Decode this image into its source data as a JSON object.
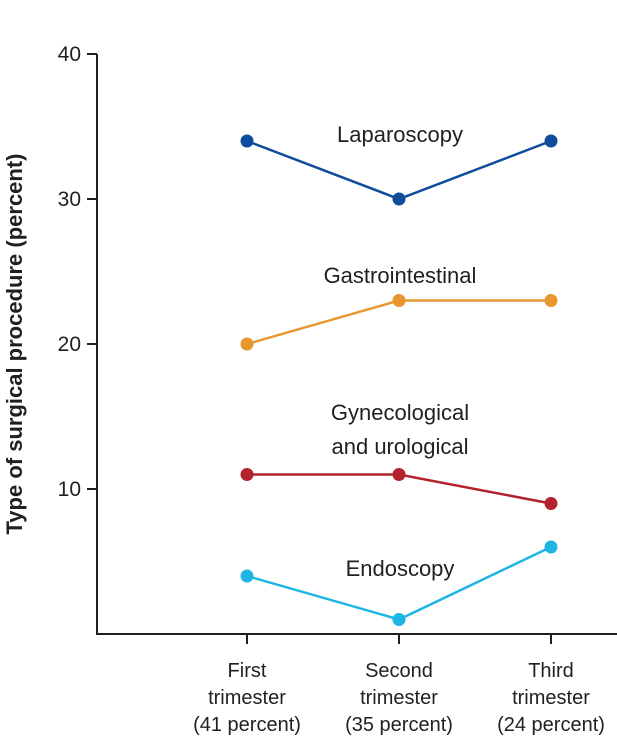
{
  "chart_data": {
    "type": "line",
    "ylabel": "Type of surgical procedure (percent)",
    "ylim": [
      0,
      40
    ],
    "yticks": [
      10,
      20,
      30,
      40
    ],
    "categories": [
      [
        "First",
        "trimester",
        "(41 percent)"
      ],
      [
        "Second",
        "trimester",
        "(35 percent)"
      ],
      [
        "Third",
        "trimester",
        "(24 percent)"
      ]
    ],
    "series": [
      {
        "name": "Laparoscopy",
        "label_lines": [
          "Laparoscopy"
        ],
        "color": "#0f4c9c",
        "values": [
          34,
          30,
          34
        ]
      },
      {
        "name": "Gastrointestinal",
        "label_lines": [
          "Gastrointestinal"
        ],
        "color": "#e8962e",
        "values": [
          20,
          23,
          23
        ]
      },
      {
        "name": "Gynecological and urological",
        "label_lines": [
          "Gynecological",
          "and urological"
        ],
        "color": "#b3232d",
        "values": [
          11,
          11,
          9
        ]
      },
      {
        "name": "Endoscopy",
        "label_lines": [
          "Endoscopy"
        ],
        "color": "#1eb4e4",
        "values": [
          4,
          1,
          6
        ]
      }
    ],
    "grid": false,
    "legend": "inline labels"
  }
}
